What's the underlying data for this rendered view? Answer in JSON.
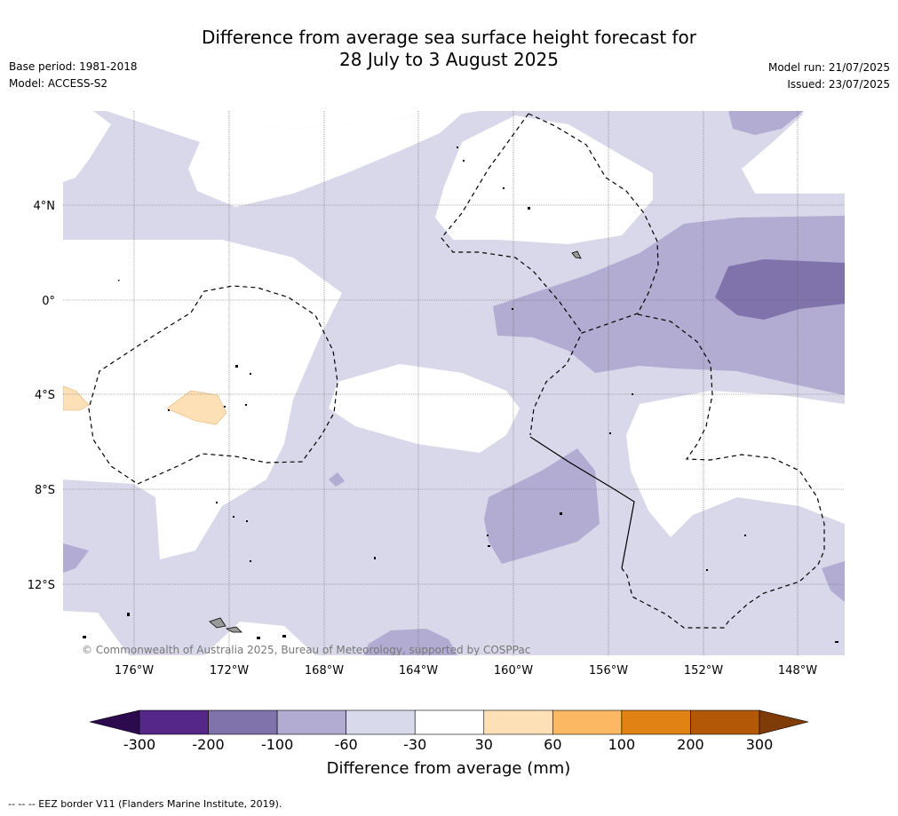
{
  "header": {
    "title_line1": "Difference from average sea surface height forecast for",
    "title_line2": "28 July to 3 August 2025",
    "base_period": "Base period: 1981-2018",
    "model": "Model: ACCESS-S2",
    "model_run": "Model run: 21/07/2025",
    "issued": "Issued: 23/07/2025"
  },
  "map": {
    "lat_labels": [
      "4°N",
      "0°",
      "4°S",
      "8°S",
      "12°S"
    ],
    "lon_labels": [
      "176°W",
      "172°W",
      "168°W",
      "164°W",
      "160°W",
      "156°W",
      "152°W",
      "148°W"
    ],
    "copyright": "© Commonwealth of Australia 2025, Bureau of Meteorology, supported by COSPPac",
    "land_color": "#999999",
    "ocean_base_color": "#d8d8ea",
    "border_style": "dashed"
  },
  "legend": {
    "title": "Difference from average (mm)",
    "tick_labels": [
      "-300",
      "-200",
      "-100",
      "-60",
      "-30",
      "30",
      "60",
      "100",
      "200",
      "300"
    ],
    "colors": [
      "#2d0a4e",
      "#542788",
      "#8073ac",
      "#b2abd2",
      "#d8daeb",
      "#ffffff",
      "#fee0b6",
      "#fdb863",
      "#e08214",
      "#b35806",
      "#7f3b08"
    ]
  },
  "footnote": "--  --  -- EEZ border V11 (Flanders Marine Institute, 2019)."
}
